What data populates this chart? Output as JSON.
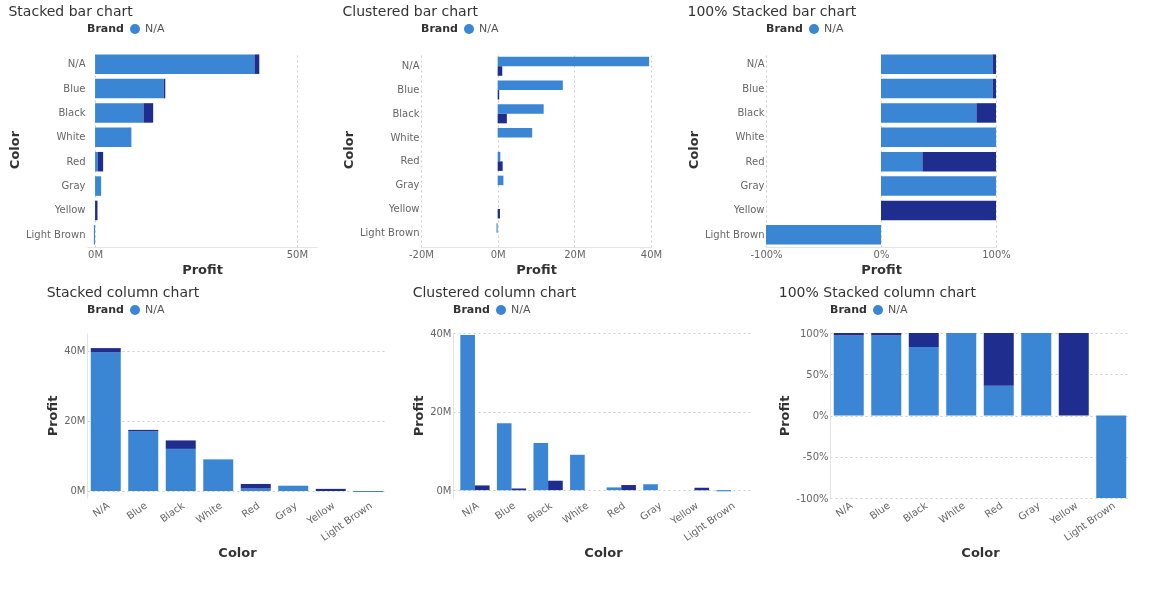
{
  "chart_data": [
    {
      "type": "bar",
      "title": "Stacked bar chart",
      "orientation": "horizontal",
      "stacked": true,
      "xlabel": "Profit",
      "ylabel": "Color",
      "legend_title": "Brand",
      "legend": "top left",
      "grid": "x",
      "categories": [
        "N/A",
        "Blue",
        "Black",
        "White",
        "Red",
        "Gray",
        "Yellow",
        "Light Brown"
      ],
      "series": [
        {
          "name": "N/A",
          "color": "#3a86d4",
          "values": [
            39.5,
            17,
            12,
            9,
            0.7,
            1.5,
            0,
            -0.3
          ]
        },
        {
          "color": "#1f2d8f",
          "values": [
            1.2,
            0.4,
            2.4,
            0,
            1.3,
            0,
            0.6,
            0
          ]
        }
      ],
      "xlim": [
        -2,
        55
      ],
      "xticks": [
        {
          "value": 0,
          "label": "0M"
        },
        {
          "value": 50,
          "label": "50M"
        }
      ]
    },
    {
      "type": "bar",
      "title": "Clustered bar chart",
      "orientation": "horizontal",
      "xlabel": "Profit",
      "ylabel": "Color",
      "legend_title": "Brand",
      "legend": "top left",
      "grid": "x",
      "categories": [
        "N/A",
        "Blue",
        "Black",
        "White",
        "Red",
        "Gray",
        "Yellow",
        "Light Brown"
      ],
      "series": [
        {
          "name": "N/A",
          "color": "#3a86d4",
          "values": [
            39.5,
            17,
            12,
            9,
            0.7,
            1.5,
            0,
            -0.3
          ]
        },
        {
          "color": "#1f2d8f",
          "values": [
            1.2,
            0.4,
            2.4,
            0,
            1.3,
            0,
            0.6,
            0
          ]
        }
      ],
      "xlim": [
        -20,
        40
      ],
      "xticks": [
        {
          "value": -20,
          "label": "-20M"
        },
        {
          "value": 0,
          "label": "0M"
        },
        {
          "value": 20,
          "label": "20M"
        },
        {
          "value": 40,
          "label": "40M"
        }
      ]
    },
    {
      "type": "bar",
      "title": "100% Stacked bar chart",
      "orientation": "horizontal",
      "stacked": true,
      "xlabel": "Profit",
      "ylabel": "Color",
      "legend_title": "Brand",
      "legend": "top left",
      "grid": "x",
      "categories": [
        "N/A",
        "Blue",
        "Black",
        "White",
        "Red",
        "Gray",
        "Yellow",
        "Light Brown"
      ],
      "series": [
        {
          "name": "N/A",
          "color": "#3a86d4",
          "values": [
            97,
            97,
            83,
            100,
            36,
            100,
            0,
            -100
          ]
        },
        {
          "color": "#1f2d8f",
          "values": [
            3,
            3,
            17,
            0,
            64,
            0,
            100,
            0
          ]
        }
      ],
      "xlim": [
        -100,
        100
      ],
      "xticks": [
        {
          "value": -100,
          "label": "-100%"
        },
        {
          "value": 0,
          "label": "0%"
        },
        {
          "value": 100,
          "label": "100%"
        }
      ]
    },
    {
      "type": "bar",
      "title": "Stacked column chart",
      "stacked": true,
      "xlabel": "Color",
      "ylabel": "Profit",
      "legend_title": "Brand",
      "legend": "top left",
      "grid": "y",
      "categories": [
        "N/A",
        "Blue",
        "Black",
        "White",
        "Red",
        "Gray",
        "Yellow",
        "Light Brown"
      ],
      "series": [
        {
          "name": "N/A",
          "color": "#3a86d4",
          "values": [
            39.5,
            17,
            12,
            9,
            0.7,
            1.5,
            0,
            -0.3
          ]
        },
        {
          "color": "#1f2d8f",
          "values": [
            1.2,
            0.4,
            2.4,
            0,
            1.3,
            0,
            0.6,
            0
          ]
        }
      ],
      "ylim": [
        -2,
        45
      ],
      "yticks": [
        {
          "value": 0,
          "label": "0M"
        },
        {
          "value": 20,
          "label": "20M"
        },
        {
          "value": 40,
          "label": "40M"
        }
      ]
    },
    {
      "type": "bar",
      "title": "Clustered column chart",
      "xlabel": "Color",
      "ylabel": "Profit",
      "legend_title": "Brand",
      "legend": "top left",
      "grid": "y",
      "categories": [
        "N/A",
        "Blue",
        "Black",
        "White",
        "Red",
        "Gray",
        "Yellow",
        "Light Brown"
      ],
      "series": [
        {
          "name": "N/A",
          "color": "#3a86d4",
          "values": [
            39.5,
            17,
            12,
            9,
            0.7,
            1.5,
            0,
            -0.3
          ]
        },
        {
          "color": "#1f2d8f",
          "values": [
            1.2,
            0.4,
            2.4,
            0,
            1.3,
            0,
            0.6,
            0
          ]
        }
      ],
      "ylim": [
        -2,
        40
      ],
      "yticks": [
        {
          "value": 0,
          "label": "0M"
        },
        {
          "value": 20,
          "label": "20M"
        },
        {
          "value": 40,
          "label": "40M"
        }
      ]
    },
    {
      "type": "bar",
      "title": "100% Stacked column chart",
      "stacked": true,
      "xlabel": "Color",
      "ylabel": "Profit",
      "legend_title": "Brand",
      "legend": "top left",
      "grid": "y",
      "categories": [
        "N/A",
        "Blue",
        "Black",
        "White",
        "Red",
        "Gray",
        "Yellow",
        "Light Brown"
      ],
      "series": [
        {
          "name": "N/A",
          "color": "#3a86d4",
          "values": [
            97,
            97,
            83,
            100,
            36,
            100,
            0,
            -100
          ]
        },
        {
          "color": "#1f2d8f",
          "values": [
            3,
            3,
            17,
            0,
            64,
            0,
            100,
            0
          ]
        }
      ],
      "ylim": [
        -100,
        100
      ],
      "yticks": [
        {
          "value": -100,
          "label": "-100%"
        },
        {
          "value": -50,
          "label": "-50%"
        },
        {
          "value": 0,
          "label": "0%"
        },
        {
          "value": 50,
          "label": "50%"
        },
        {
          "value": 100,
          "label": "100%"
        }
      ]
    }
  ]
}
